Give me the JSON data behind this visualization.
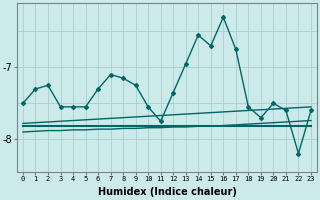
{
  "xlabel": "Humidex (Indice chaleur)",
  "ylabel": "",
  "background_color": "#cdeaea",
  "grid_color": "#aacece",
  "line_color": "#006666",
  "x": [
    0,
    1,
    2,
    3,
    4,
    5,
    6,
    7,
    8,
    9,
    10,
    11,
    12,
    13,
    14,
    15,
    16,
    17,
    18,
    19,
    20,
    21,
    22,
    23
  ],
  "y_main": [
    -7.5,
    -7.3,
    -7.25,
    -7.55,
    -7.55,
    -7.55,
    -7.3,
    -7.1,
    -7.15,
    -7.25,
    -7.55,
    -7.75,
    -7.35,
    -6.95,
    -6.55,
    -6.7,
    -6.3,
    -6.75,
    -7.55,
    -7.7,
    -7.5,
    -7.6,
    -8.2,
    -7.6
  ],
  "y_mean": [
    -7.82,
    -7.82,
    -7.82,
    -7.82,
    -7.82,
    -7.82,
    -7.82,
    -7.82,
    -7.82,
    -7.82,
    -7.82,
    -7.82,
    -7.82,
    -7.82,
    -7.82,
    -7.82,
    -7.82,
    -7.82,
    -7.82,
    -7.82,
    -7.82,
    -7.82,
    -7.82,
    -7.82
  ],
  "y_upper": [
    -7.78,
    -7.77,
    -7.76,
    -7.75,
    -7.74,
    -7.73,
    -7.72,
    -7.71,
    -7.7,
    -7.69,
    -7.68,
    -7.67,
    -7.66,
    -7.65,
    -7.64,
    -7.63,
    -7.62,
    -7.61,
    -7.6,
    -7.59,
    -7.58,
    -7.57,
    -7.56,
    -7.55
  ],
  "y_lower": [
    -7.9,
    -7.89,
    -7.88,
    -7.88,
    -7.87,
    -7.87,
    -7.86,
    -7.86,
    -7.85,
    -7.85,
    -7.84,
    -7.84,
    -7.83,
    -7.83,
    -7.82,
    -7.82,
    -7.81,
    -7.8,
    -7.79,
    -7.78,
    -7.77,
    -7.76,
    -7.75,
    -7.74
  ],
  "xlim": [
    -0.5,
    23.5
  ],
  "ylim": [
    -8.45,
    -6.1
  ],
  "yticks": [
    -8,
    -7
  ],
  "xticks": [
    0,
    1,
    2,
    3,
    4,
    5,
    6,
    7,
    8,
    9,
    10,
    11,
    12,
    13,
    14,
    15,
    16,
    17,
    18,
    19,
    20,
    21,
    22,
    23
  ]
}
